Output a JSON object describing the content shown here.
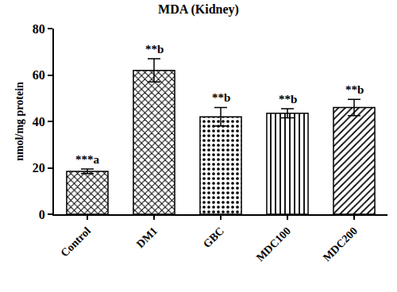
{
  "chart_data": {
    "type": "bar",
    "title": "MDA (Kidney)",
    "y_label": "nmol/mg protein",
    "categories": [
      "Control",
      "DM1",
      "GBC",
      "MDC100",
      "MDC200"
    ],
    "values": [
      18.5,
      62,
      42,
      43.5,
      46
    ],
    "errors": [
      1,
      5,
      4,
      2,
      3.5
    ],
    "annotations": [
      "***a",
      "**b",
      "**b",
      "**b",
      "**b"
    ],
    "color": "#000000",
    "ylim": [
      0,
      80
    ],
    "yticks": [
      0,
      20,
      40,
      60,
      80
    ],
    "grid": false
  }
}
